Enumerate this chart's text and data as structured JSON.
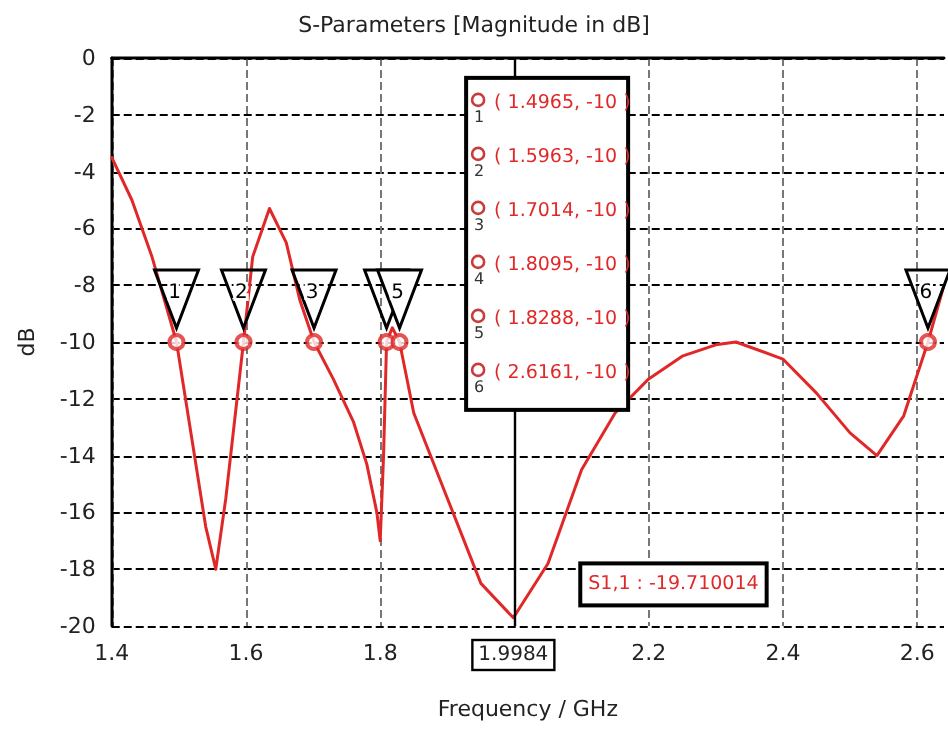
{
  "chart_data": {
    "type": "line",
    "title": "S-Parameters [Magnitude in dB]",
    "xlabel": "Frequency / GHz",
    "ylabel": "dB",
    "x": [
      1.4,
      1.43,
      1.46,
      1.4965,
      1.52,
      1.54,
      1.555,
      1.57,
      1.5963,
      1.61,
      1.635,
      1.66,
      1.68,
      1.7014,
      1.73,
      1.76,
      1.78,
      1.795,
      1.8,
      1.805,
      1.8095,
      1.818,
      1.8288,
      1.85,
      1.9,
      1.95,
      1.9984,
      2.05,
      2.1,
      2.15,
      2.2,
      2.25,
      2.3,
      2.33,
      2.4,
      2.45,
      2.5,
      2.54,
      2.58,
      2.6161,
      2.64
    ],
    "series": [
      {
        "color": "#e02828",
        "values": [
          -3.5,
          -5,
          -7,
          -10,
          -13.5,
          -16.5,
          -18,
          -15.5,
          -10,
          -7,
          -5.3,
          -6.5,
          -8.5,
          -10,
          -11.3,
          -12.8,
          -14.3,
          -16,
          -17,
          -14,
          -10,
          -9.5,
          -10,
          -12.5,
          -15.5,
          -18.5,
          -19.71,
          -17.8,
          -14.5,
          -12.5,
          -11.3,
          -10.5,
          -10.1,
          -10,
          -10.6,
          -11.8,
          -13.2,
          -14,
          -12.6,
          -10,
          -8
        ]
      },
      {
        "type": "scatter",
        "color": "#e02828",
        "marker": "circle",
        "x": [
          1.4965,
          1.5963,
          1.7014,
          1.8095,
          1.8288,
          2.6161
        ],
        "values": [
          -10,
          -10,
          -10,
          -10,
          -10,
          -10
        ]
      }
    ],
    "xlim": [
      1.4,
      2.64
    ],
    "xticks": [
      1.4,
      1.6,
      1.8,
      2.2,
      2.4,
      2.6
    ],
    "ylim": [
      -20,
      0
    ],
    "yticks": [
      -20,
      -18,
      -16,
      -14,
      -12,
      -10,
      -8,
      -6,
      -4,
      -2,
      0
    ],
    "grid": true,
    "line_style": "solid",
    "ref_lines": [
      {
        "axis": "x",
        "value": 1.9984,
        "label": "1.9984",
        "color": "#000000"
      }
    ],
    "annotations": [
      {
        "text": "1",
        "x": 1.4965,
        "y": -10
      },
      {
        "text": "2",
        "x": 1.5963,
        "y": -10
      },
      {
        "text": "3",
        "x": 1.7014,
        "y": -10
      },
      {
        "text": "5",
        "x": 1.8288,
        "y": -10
      },
      {
        "text": "6",
        "x": 2.6161,
        "y": -10
      },
      "( 1.4965, -10 )",
      "1",
      "( 1.5963, -10 )",
      "2",
      "( 1.7014, -10 )",
      "3",
      "( 1.8095, -10 )",
      "4",
      "( 1.8288, -10 )",
      "5",
      "( 2.6161, -10 )",
      "6",
      "S1,1 : -19.710014"
    ]
  }
}
